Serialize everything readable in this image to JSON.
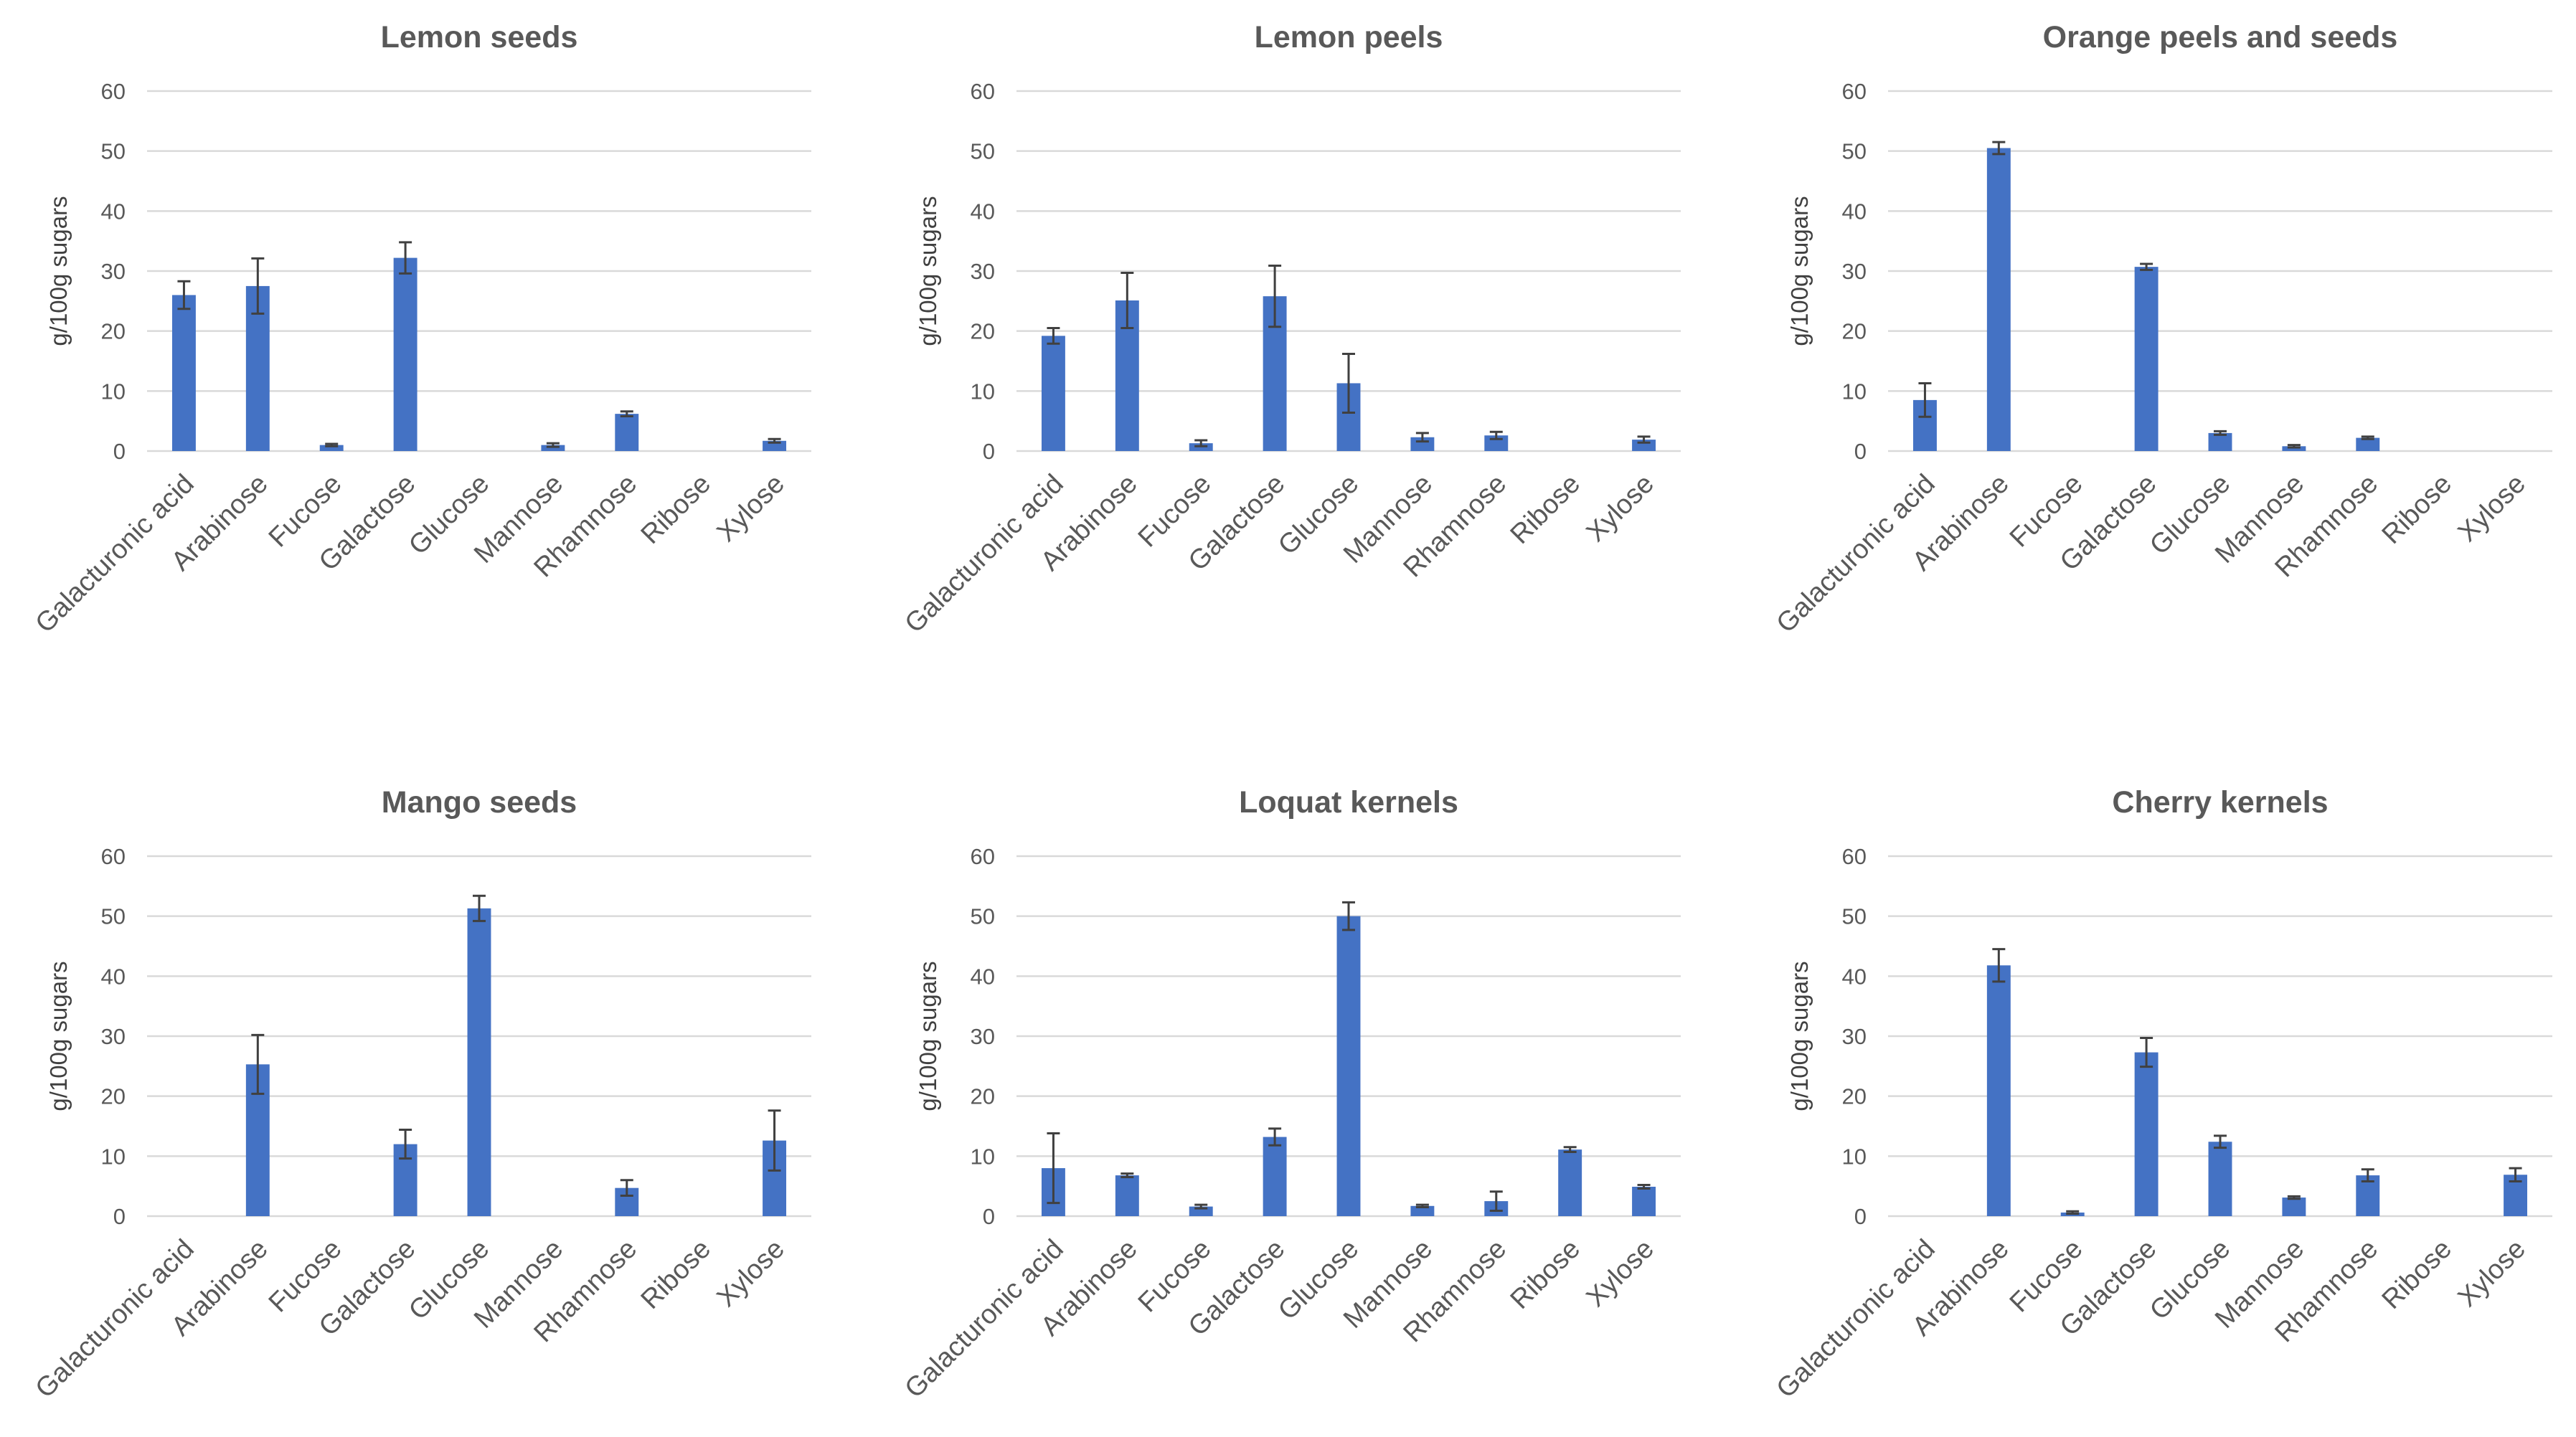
{
  "chart_data": [
    {
      "type": "bar",
      "title": "Lemon seeds",
      "ylabel": "g/100g sugars",
      "xlabel": "",
      "ylim": [
        0,
        60
      ],
      "yticks": [
        0,
        10,
        20,
        30,
        40,
        50,
        60
      ],
      "grid": true,
      "categories": [
        "Galacturonic acid",
        "Arabinose",
        "Fucose",
        "Galactose",
        "Glucose",
        "Mannose",
        "Rhamnose",
        "Ribose",
        "Xylose"
      ],
      "values": [
        26,
        27.5,
        1,
        32.2,
        0,
        1,
        6.2,
        0,
        1.7
      ],
      "errors": [
        2.3,
        4.6,
        0.2,
        2.6,
        0,
        0.3,
        0.4,
        0,
        0.3
      ]
    },
    {
      "type": "bar",
      "title": "Lemon peels",
      "ylabel": "g/100g sugars",
      "xlabel": "",
      "ylim": [
        0,
        60
      ],
      "yticks": [
        0,
        10,
        20,
        30,
        40,
        50,
        60
      ],
      "grid": true,
      "categories": [
        "Galacturonic acid",
        "Arabinose",
        "Fucose",
        "Galactose",
        "Glucose",
        "Mannose",
        "Rhamnose",
        "Ribose",
        "Xylose"
      ],
      "values": [
        19.2,
        25.1,
        1.3,
        25.8,
        11.3,
        2.3,
        2.6,
        0,
        1.9
      ],
      "errors": [
        1.3,
        4.6,
        0.5,
        5.1,
        4.9,
        0.7,
        0.6,
        0,
        0.5
      ]
    },
    {
      "type": "bar",
      "title": "Orange peels and seeds",
      "ylabel": "g/100g sugars",
      "xlabel": "",
      "ylim": [
        0,
        60
      ],
      "yticks": [
        0,
        10,
        20,
        30,
        40,
        50,
        60
      ],
      "grid": true,
      "categories": [
        "Galacturonic acid",
        "Arabinose",
        "Fucose",
        "Galactose",
        "Glucose",
        "Mannose",
        "Rhamnose",
        "Ribose",
        "Xylose"
      ],
      "values": [
        8.5,
        50.5,
        0,
        30.7,
        3,
        0.8,
        2.2,
        0,
        0
      ],
      "errors": [
        2.8,
        1,
        0,
        0.5,
        0.3,
        0.2,
        0.2,
        0,
        0
      ]
    },
    {
      "type": "bar",
      "title": "Mango seeds",
      "ylabel": "g/100g sugars",
      "xlabel": "",
      "ylim": [
        0,
        60
      ],
      "yticks": [
        0,
        10,
        20,
        30,
        40,
        50,
        60
      ],
      "grid": true,
      "categories": [
        "Galacturonic acid",
        "Arabinose",
        "Fucose",
        "Galactose",
        "Glucose",
        "Mannose",
        "Rhamnose",
        "Ribose",
        "Xylose"
      ],
      "values": [
        0,
        25.3,
        0,
        12,
        51.3,
        0,
        4.7,
        0,
        12.6
      ],
      "errors": [
        0,
        4.9,
        0,
        2.4,
        2.1,
        0,
        1.3,
        0,
        5
      ]
    },
    {
      "type": "bar",
      "title": "Loquat kernels",
      "ylabel": "g/100g sugars",
      "xlabel": "",
      "ylim": [
        0,
        60
      ],
      "yticks": [
        0,
        10,
        20,
        30,
        40,
        50,
        60
      ],
      "grid": true,
      "categories": [
        "Galacturonic acid",
        "Arabinose",
        "Fucose",
        "Galactose",
        "Glucose",
        "Mannose",
        "Rhamnose",
        "Ribose",
        "Xylose"
      ],
      "values": [
        8,
        6.8,
        1.6,
        13.2,
        50,
        1.7,
        2.5,
        11.1,
        4.9
      ],
      "errors": [
        5.8,
        0.3,
        0.3,
        1.4,
        2.3,
        0.2,
        1.6,
        0.4,
        0.3
      ]
    },
    {
      "type": "bar",
      "title": "Cherry kernels",
      "ylabel": "g/100g sugars",
      "xlabel": "",
      "ylim": [
        0,
        60
      ],
      "yticks": [
        0,
        10,
        20,
        30,
        40,
        50,
        60
      ],
      "grid": true,
      "categories": [
        "Galacturonic acid",
        "Arabinose",
        "Fucose",
        "Galactose",
        "Glucose",
        "Mannose",
        "Rhamnose",
        "Ribose",
        "Xylose"
      ],
      "values": [
        0,
        41.8,
        0.6,
        27.3,
        12.4,
        3.1,
        6.8,
        0,
        6.9
      ],
      "errors": [
        0,
        2.7,
        0.2,
        2.4,
        1,
        0.2,
        1,
        0,
        1.1
      ]
    }
  ]
}
